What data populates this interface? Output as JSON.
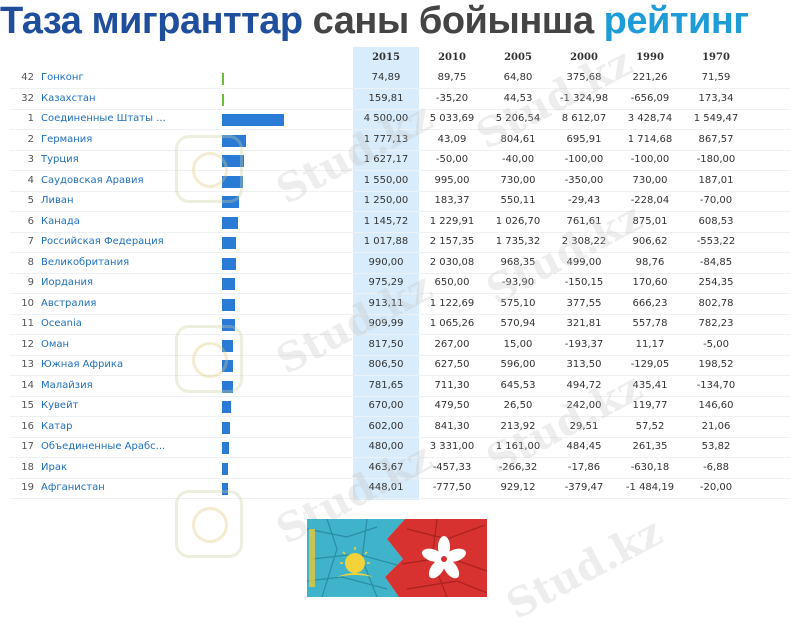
{
  "title": {
    "part1": "Таза мигранттар",
    "part2": " саны бойынша",
    "part3": " рейтинг"
  },
  "watermark_text": "Stud.kz",
  "colors": {
    "bar": "#2a7bd6",
    "bar_small": "#6abf3a",
    "highlight": "#d8ecfb",
    "country": "#1f6fbf"
  },
  "chart_data": {
    "type": "table",
    "columns": [
      "2015",
      "2010",
      "2005",
      "2000",
      "1990",
      "1970"
    ],
    "rows": [
      {
        "rank": "42",
        "country": "Гонконг",
        "bar": 74.89,
        "values": [
          "74,89",
          "89,75",
          "64,80",
          "375,68",
          "221,26",
          "71,59"
        ]
      },
      {
        "rank": "32",
        "country": "Казахстан",
        "bar": 159.81,
        "values": [
          "159,81",
          "-35,20",
          "44,53",
          "-1 324,98",
          "-656,09",
          "173,34"
        ]
      },
      {
        "rank": "1",
        "country": "Соединенные Штаты ...",
        "bar": 4500.0,
        "values": [
          "4 500,00",
          "5 033,69",
          "5 206,54",
          "8 612,07",
          "3 428,74",
          "1 549,47"
        ]
      },
      {
        "rank": "2",
        "country": "Германия",
        "bar": 1777.13,
        "values": [
          "1 777,13",
          "43,09",
          "804,61",
          "695,91",
          "1 714,68",
          "867,57"
        ]
      },
      {
        "rank": "3",
        "country": "Турция",
        "bar": 1627.17,
        "values": [
          "1 627,17",
          "-50,00",
          "-40,00",
          "-100,00",
          "-100,00",
          "-180,00"
        ]
      },
      {
        "rank": "4",
        "country": "Саудовская Аравия",
        "bar": 1550.0,
        "values": [
          "1 550,00",
          "995,00",
          "730,00",
          "-350,00",
          "730,00",
          "187,01"
        ]
      },
      {
        "rank": "5",
        "country": "Ливан",
        "bar": 1250.0,
        "values": [
          "1 250,00",
          "183,37",
          "550,11",
          "-29,43",
          "-228,04",
          "-70,00"
        ]
      },
      {
        "rank": "6",
        "country": "Канада",
        "bar": 1145.72,
        "values": [
          "1 145,72",
          "1 229,91",
          "1 026,70",
          "761,61",
          "875,01",
          "608,53"
        ]
      },
      {
        "rank": "7",
        "country": "Российская Федерация",
        "bar": 1017.88,
        "values": [
          "1 017,88",
          "2 157,35",
          "1 735,32",
          "2 308,22",
          "906,62",
          "-553,22"
        ]
      },
      {
        "rank": "8",
        "country": "Великобритания",
        "bar": 990.0,
        "values": [
          "990,00",
          "2 030,08",
          "968,35",
          "499,00",
          "98,76",
          "-84,85"
        ]
      },
      {
        "rank": "9",
        "country": "Иордания",
        "bar": 975.29,
        "values": [
          "975,29",
          "650,00",
          "-93,90",
          "-150,15",
          "170,60",
          "254,35"
        ]
      },
      {
        "rank": "10",
        "country": "Австралия",
        "bar": 913.11,
        "values": [
          "913,11",
          "1 122,69",
          "575,10",
          "377,55",
          "666,23",
          "802,78"
        ]
      },
      {
        "rank": "11",
        "country": "Oceania",
        "bar": 909.99,
        "values": [
          "909,99",
          "1 065,26",
          "570,94",
          "321,81",
          "557,78",
          "782,23"
        ]
      },
      {
        "rank": "12",
        "country": "Оман",
        "bar": 817.5,
        "values": [
          "817,50",
          "267,00",
          "15,00",
          "-193,37",
          "11,17",
          "-5,00"
        ]
      },
      {
        "rank": "13",
        "country": "Южная Африка",
        "bar": 806.5,
        "values": [
          "806,50",
          "627,50",
          "596,00",
          "313,50",
          "-129,05",
          "198,52"
        ]
      },
      {
        "rank": "14",
        "country": "Малайзия",
        "bar": 781.65,
        "values": [
          "781,65",
          "711,30",
          "645,53",
          "494,72",
          "435,41",
          "-134,70"
        ]
      },
      {
        "rank": "15",
        "country": "Кувейт",
        "bar": 670.0,
        "values": [
          "670,00",
          "479,50",
          "26,50",
          "242,00",
          "119,77",
          "146,60"
        ]
      },
      {
        "rank": "16",
        "country": "Катар",
        "bar": 602.0,
        "values": [
          "602,00",
          "841,30",
          "213,92",
          "29,51",
          "57,52",
          "21,06"
        ]
      },
      {
        "rank": "17",
        "country": "Объединенные Арабс...",
        "bar": 480.0,
        "values": [
          "480,00",
          "3 331,00",
          "1 161,00",
          "484,45",
          "261,35",
          "53,82"
        ]
      },
      {
        "rank": "18",
        "country": "Ирак",
        "bar": 463.67,
        "values": [
          "463,67",
          "-457,33",
          "-266,32",
          "-17,86",
          "-630,18",
          "-6,88"
        ]
      },
      {
        "rank": "19",
        "country": "Афганистан",
        "bar": 448.01,
        "values": [
          "448,01",
          "-777,50",
          "929,12",
          "-379,47",
          "-1 484,19",
          "-20,00"
        ]
      }
    ]
  }
}
